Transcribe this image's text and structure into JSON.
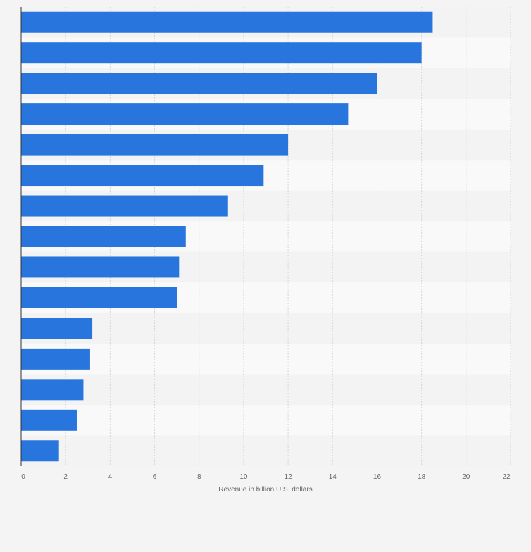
{
  "chart_data": {
    "type": "bar",
    "orientation": "horizontal",
    "title": "",
    "xlabel": "Revenue in billion U.S. dollars",
    "ylabel": "",
    "xlim": [
      0,
      22
    ],
    "x_ticks": [
      0,
      2,
      4,
      6,
      8,
      10,
      12,
      14,
      16,
      18,
      20,
      22
    ],
    "grid": true,
    "legend": "none",
    "bar_color": "#2876dd",
    "values": [
      18.5,
      18.0,
      16.0,
      14.7,
      12.0,
      10.9,
      9.3,
      7.4,
      7.1,
      7.0,
      3.2,
      3.1,
      2.8,
      2.5,
      1.7
    ]
  }
}
